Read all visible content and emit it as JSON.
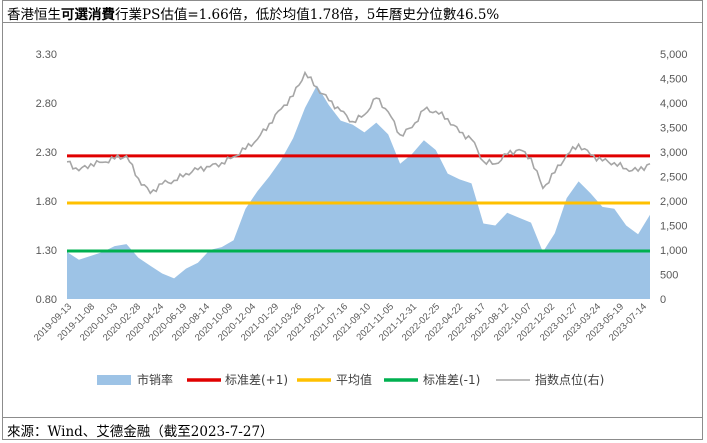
{
  "title": {
    "pre": "香港恒生",
    "bold": "可選消費",
    "post": "行業PS估值=1.66倍，低於均值1.78倍，5年曆史分位數46.5%"
  },
  "source": "來源：Wind、艾德金融（截至2023-7-27）",
  "colors": {
    "area": "#9dc3e6",
    "upper": "#e00000",
    "mean": "#ffc000",
    "lower": "#00b050",
    "index": "#a6a6a6"
  },
  "chart_data": {
    "type": "area",
    "left_axis": {
      "min": 0.8,
      "max": 3.3,
      "ticks": [
        "0.80",
        "1.30",
        "1.80",
        "2.30",
        "2.80",
        "3.30"
      ]
    },
    "right_axis": {
      "min": 0,
      "max": 5000,
      "ticks": [
        "0",
        "500",
        "1,000",
        "1,500",
        "2,000",
        "2,500",
        "3,000",
        "3,500",
        "4,000",
        "4,500",
        "5,000"
      ]
    },
    "x_labels": [
      "2019-09-13",
      "2019-11-08",
      "2020-01-03",
      "2020-02-28",
      "2020-04-24",
      "2020-06-19",
      "2020-08-14",
      "2020-10-09",
      "2020-12-04",
      "2021-01-29",
      "2021-03-26",
      "2021-05-21",
      "2021-07-16",
      "2021-09-10",
      "2021-11-05",
      "2021-12-31",
      "2022-02-25",
      "2022-04-22",
      "2022-06-17",
      "2022-08-12",
      "2022-10-07",
      "2022-12-02",
      "2023-01-27",
      "2023-03-24",
      "2023-05-19",
      "2023-07-14"
    ],
    "ps_series": [
      1.28,
      1.2,
      1.24,
      1.28,
      1.34,
      1.36,
      1.22,
      1.14,
      1.06,
      1.01,
      1.11,
      1.17,
      1.3,
      1.33,
      1.4,
      1.72,
      1.9,
      2.05,
      2.22,
      2.44,
      2.75,
      2.98,
      2.78,
      2.62,
      2.58,
      2.5,
      2.6,
      2.48,
      2.18,
      2.28,
      2.42,
      2.32,
      2.08,
      2.02,
      1.98,
      1.57,
      1.55,
      1.68,
      1.63,
      1.58,
      1.28,
      1.47,
      1.83,
      2.0,
      1.88,
      1.74,
      1.72,
      1.55,
      1.46,
      1.66
    ],
    "index_series": [
      2800,
      2620,
      2760,
      2790,
      2860,
      2920,
      2460,
      2160,
      2350,
      2420,
      2560,
      2640,
      2700,
      2780,
      2900,
      3060,
      3260,
      3580,
      3880,
      4140,
      4620,
      4320,
      4050,
      3840,
      3620,
      3760,
      4100,
      3820,
      3350,
      3500,
      3860,
      3830,
      3680,
      3400,
      3260,
      2810,
      2760,
      2950,
      3050,
      2880,
      2260,
      2580,
      2940,
      3160,
      2940,
      2820,
      2780,
      2660,
      2610,
      2760
    ],
    "upper_band": 2.26,
    "mean": 1.78,
    "lower_band": 1.29,
    "legend": [
      "市销率",
      "标准差(+1)",
      "平均值",
      "标准差(-1)",
      "指数点位(右)"
    ]
  }
}
